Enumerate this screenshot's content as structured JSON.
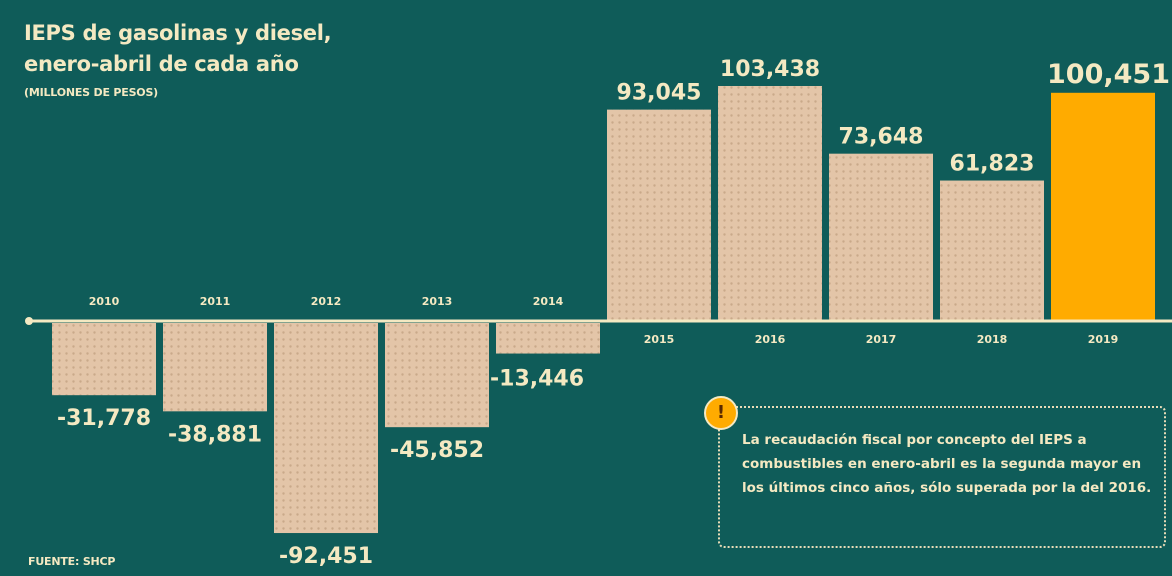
{
  "title_line1": "IEPS de gasolinas y diesel,",
  "title_line2": "enero-abril de cada año",
  "subtitle": "(MILLONES DE PESOS)",
  "source": "FUENTE: SHCP",
  "callout": {
    "badge": "!",
    "text": "La recaudación fiscal por concepto del IEPS a combustibles en enero-abril es la segunda mayor en los últimos cinco años, sólo superada por la del 2016."
  },
  "colors": {
    "background": "#0f5c59",
    "bar": "#e3c5a8",
    "bar_dots": "#c9a98a",
    "highlight": "#ffab00",
    "text": "#f4e9c2"
  },
  "chart_data": {
    "type": "bar",
    "categories": [
      "2010",
      "2011",
      "2012",
      "2013",
      "2014",
      "2015",
      "2016",
      "2017",
      "2018",
      "2019"
    ],
    "values": [
      -31778,
      -38881,
      -92451,
      -45852,
      -13446,
      93045,
      103438,
      73648,
      61823,
      100451
    ],
    "value_labels": [
      "-31,778",
      "-38,881",
      "-92,451",
      "-45,852",
      "-13,446",
      "93,045",
      "103,438",
      "73,648",
      "61,823",
      "100,451"
    ],
    "highlight_category": "2019",
    "title": "IEPS de gasolinas y diesel, enero-abril de cada año",
    "ylabel": "(MILLONES DE PESOS)",
    "ylim": [
      -100000,
      110000
    ],
    "grid": false
  }
}
